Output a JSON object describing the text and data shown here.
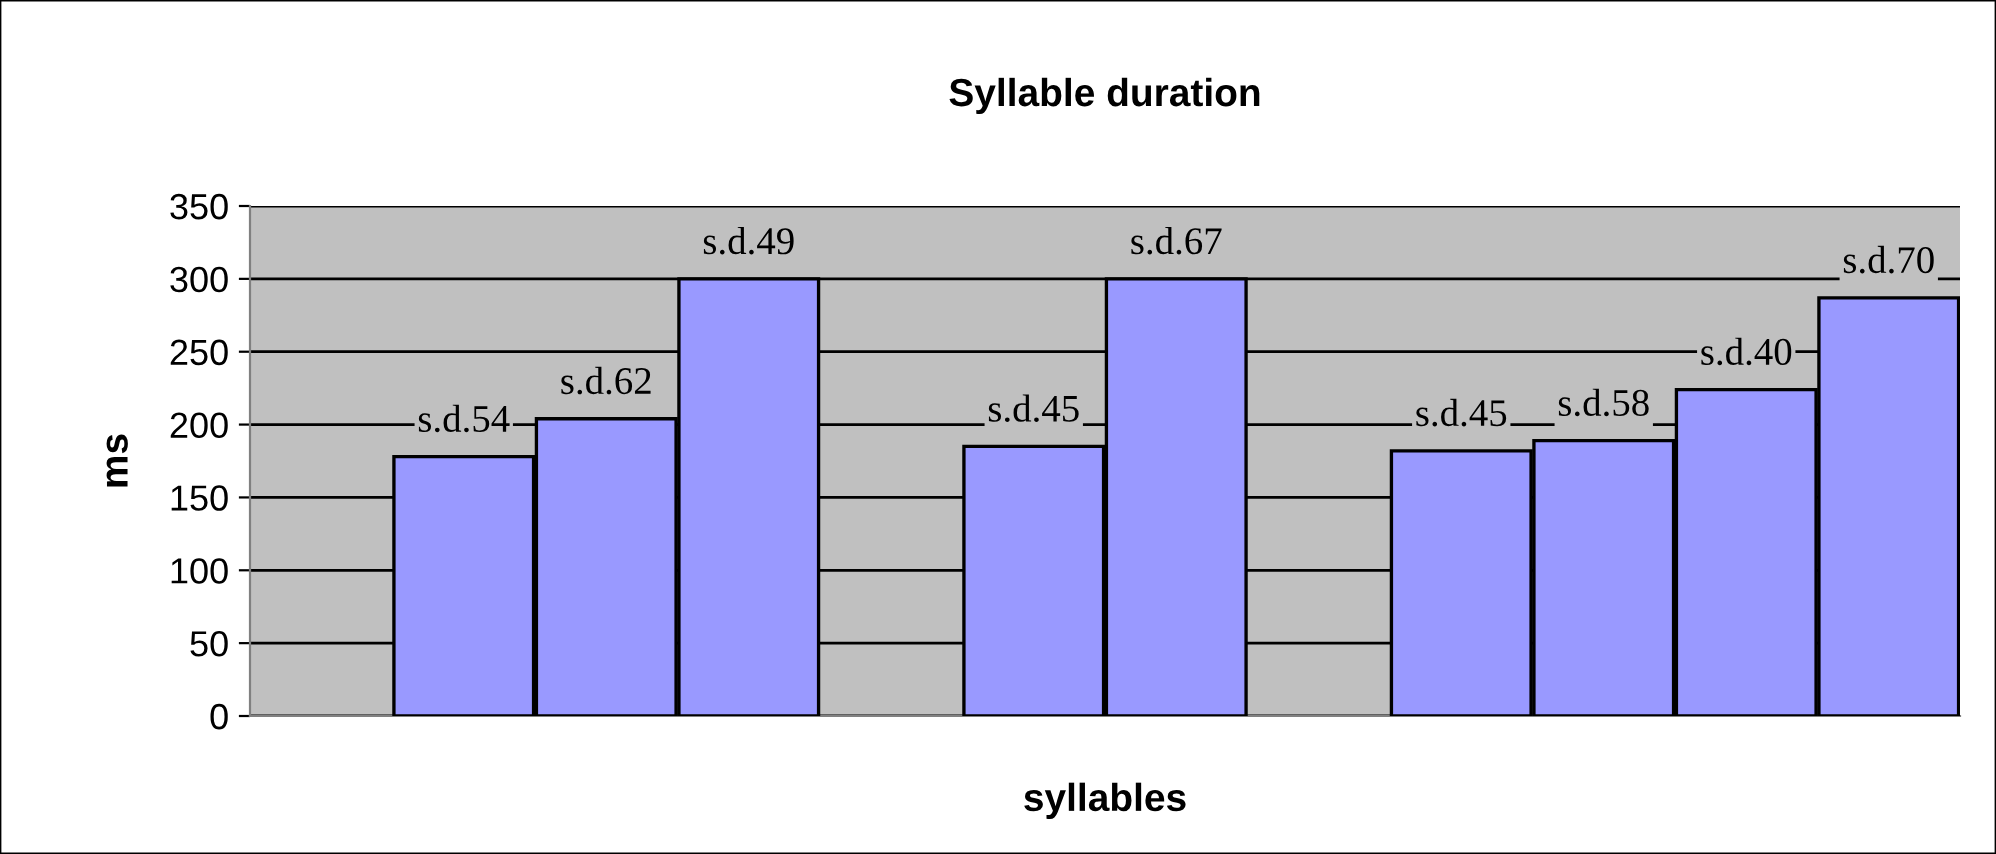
{
  "chart_data": {
    "type": "bar",
    "title": "Syllable duration",
    "xlabel": "syllables",
    "ylabel": "ms",
    "categories": [
      null,
      null,
      null,
      null,
      null,
      null,
      null,
      null,
      null,
      null,
      null,
      null
    ],
    "values": [
      null,
      178,
      204,
      300,
      null,
      185,
      300,
      null,
      182,
      189,
      224,
      287
    ],
    "value_labels": [
      null,
      "s.d.54",
      "s.d.62",
      "s.d.49",
      null,
      "s.d.45",
      "s.d.67",
      null,
      "s.d.45",
      "s.d.58",
      "s.d.40",
      "s.d.70"
    ],
    "color": "#9999ff",
    "ylim": [
      0,
      350
    ],
    "yticks": [
      0,
      50,
      100,
      150,
      200,
      250,
      300,
      350
    ],
    "grid": "y",
    "tick_labels": "y",
    "legend": false
  }
}
